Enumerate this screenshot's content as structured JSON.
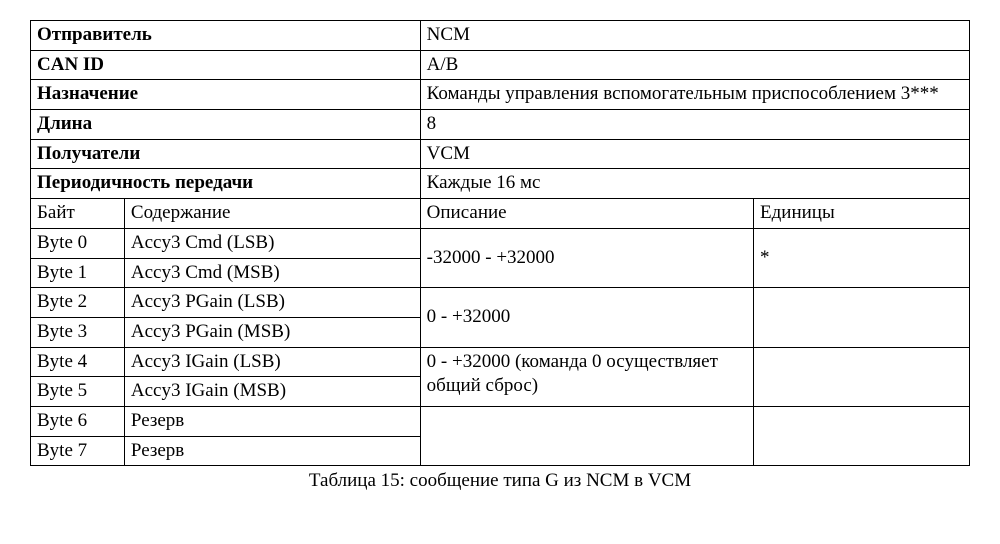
{
  "header": {
    "sender_label": "Отправитель",
    "sender_value": "NCM",
    "canid_label": "CAN ID",
    "canid_value": "A/B",
    "purpose_label": "Назначение",
    "purpose_value": "Команды управления вспомогательным приспособлением 3***",
    "length_label": "Длина",
    "length_value": "8",
    "receivers_label": "Получатели",
    "receivers_value": "VCM",
    "periodicity_label": "Периодичность передачи",
    "periodicity_value": "Каждые 16 мс"
  },
  "columns": {
    "byte": "Байт",
    "content": "Содержание",
    "description": "Описание",
    "units": "Единицы"
  },
  "rows": {
    "r0_byte": "Byte 0",
    "r0_content": "Accy3 Cmd (LSB)",
    "r1_byte": "Byte 1",
    "r1_content": "Accy3 Cmd (MSB)",
    "desc01": "-32000 - +32000",
    "units01": "*",
    "r2_byte": "Byte 2",
    "r2_content": "Accy3 PGain (LSB)",
    "r3_byte": "Byte 3",
    "r3_content": "Accy3 PGain (MSB)",
    "desc23": "0 - +32000",
    "units23": "",
    "r4_byte": "Byte 4",
    "r4_content": "Accy3 IGain (LSB)",
    "r5_byte": "Byte 5",
    "r5_content": "Accy3 IGain (MSB)",
    "desc45": "0 - +32000 (команда 0 осуществляет общий сброс)",
    "units45": "",
    "r6_byte": "Byte 6",
    "r6_content": "Резерв",
    "r7_byte": "Byte 7",
    "r7_content": "Резерв"
  },
  "caption": "Таблица 15: сообщение типа G из NCM в VCM"
}
